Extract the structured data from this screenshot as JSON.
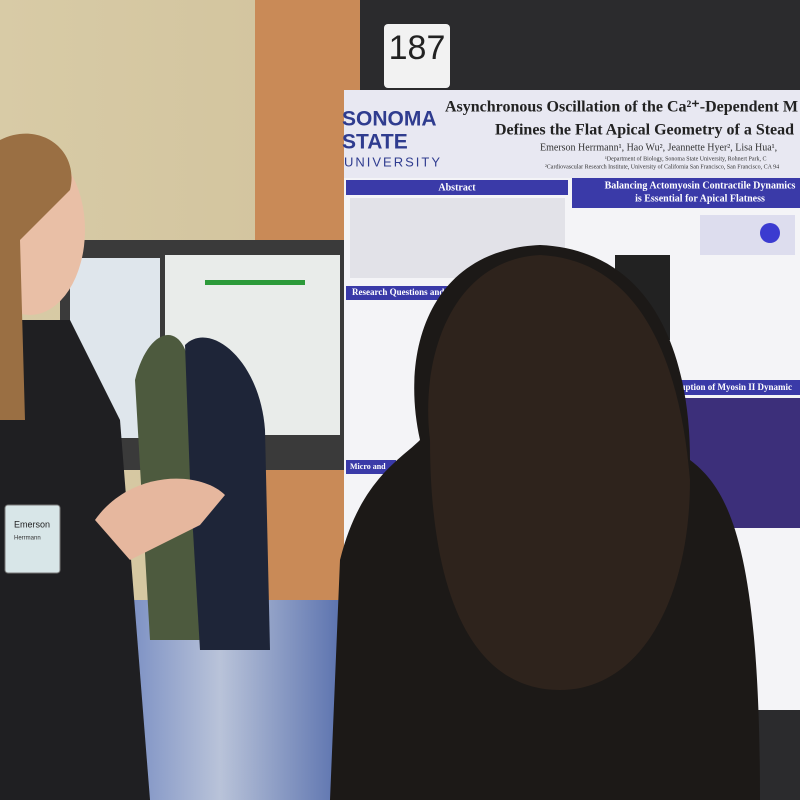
{
  "booth_number": "187",
  "poster": {
    "logo": [
      "SONOMA",
      "STATE",
      "UNIVERSITY"
    ],
    "title_lines": [
      "Asynchronous Oscillation of the Ca²⁺-Dependent M",
      "Defines the Flat Apical Geometry of a Stead"
    ],
    "authors": "Emerson Herrmann¹, Hao Wu², Jeannette Hyer², Lisa Hua¹,",
    "affiliations": [
      "¹Department of Biology, Sonoma State University, Rohnert Park, C",
      "²Cardiovascular Research Institute, University of California San Francisco, San Francisco, CA 94"
    ],
    "sections": [
      "Abstract",
      "Balancing Actomyosin Contractile Dynamics",
      "is Essential for Apical Flatness",
      "Research Questions and",
      "Disruption of Myosin II Dynamic",
      "Micro and"
    ]
  },
  "badge": {
    "name": "Emerson",
    "surname": "Herrmann"
  }
}
